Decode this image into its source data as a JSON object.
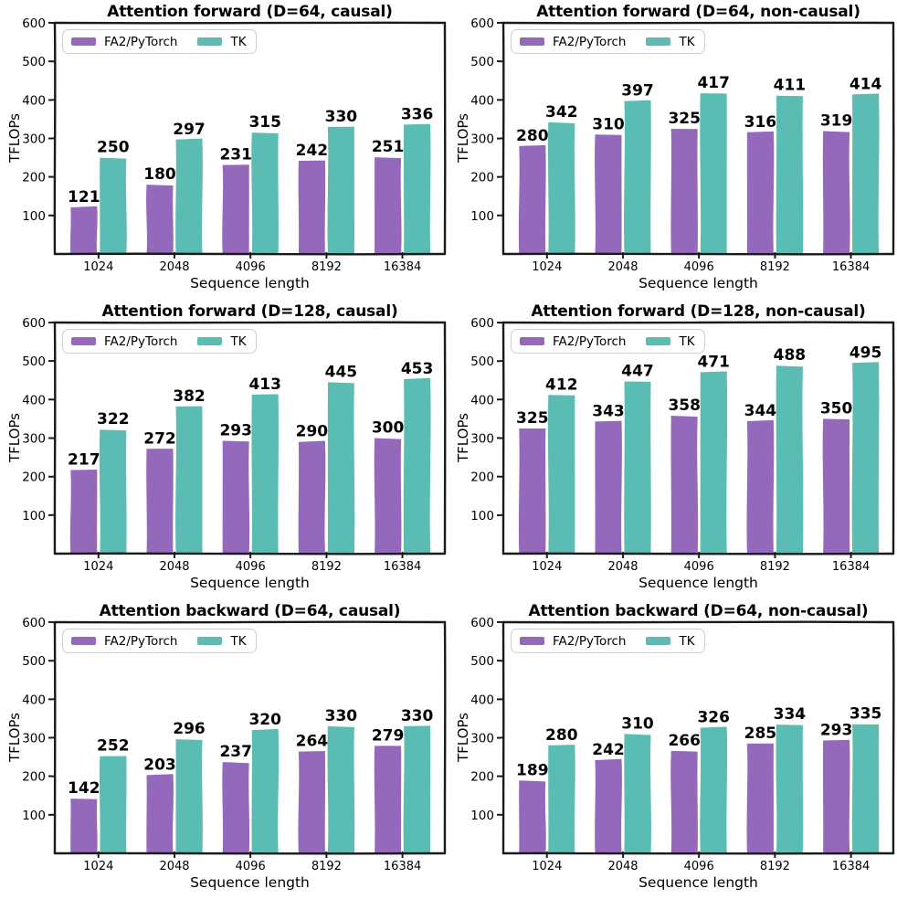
{
  "chart_data": {
    "type": "bar",
    "categories": [
      "1024",
      "2048",
      "4096",
      "8192",
      "16384"
    ],
    "xlabel": "Sequence length",
    "ylabel": "TFLOPs",
    "ylim": [
      0,
      600
    ],
    "yticks": [
      100,
      200,
      300,
      400,
      500,
      600
    ],
    "grid": false,
    "legend_position": "upper left",
    "legend": {
      "fa2": "FA2/PyTorch",
      "tk": "TK"
    },
    "colors": {
      "fa2": "#9468bb",
      "tk": "#5bbcb4",
      "axis": "#1a1a1a",
      "text": "#000000",
      "legend_border": "#cfcfcf",
      "background": "#ffffff"
    },
    "charts": [
      {
        "title": "Attention forward (D=64, causal)",
        "series": [
          {
            "name": "FA2/PyTorch",
            "values": [
              121,
              180,
              231,
              242,
              251
            ]
          },
          {
            "name": "TK",
            "values": [
              250,
              297,
              315,
              330,
              336
            ]
          }
        ]
      },
      {
        "title": "Attention forward (D=64, non-causal)",
        "series": [
          {
            "name": "FA2/PyTorch",
            "values": [
              280,
              310,
              325,
              316,
              319
            ]
          },
          {
            "name": "TK",
            "values": [
              342,
              397,
              417,
              411,
              414
            ]
          }
        ]
      },
      {
        "title": "Attention forward (D=128, causal)",
        "series": [
          {
            "name": "FA2/PyTorch",
            "values": [
              217,
              272,
              293,
              290,
              300
            ]
          },
          {
            "name": "TK",
            "values": [
              322,
              382,
              413,
              445,
              453
            ]
          }
        ]
      },
      {
        "title": "Attention forward (D=128, non-causal)",
        "series": [
          {
            "name": "FA2/PyTorch",
            "values": [
              325,
              343,
              358,
              344,
              350
            ]
          },
          {
            "name": "TK",
            "values": [
              412,
              447,
              471,
              488,
              495
            ]
          }
        ]
      },
      {
        "title": "Attention backward (D=64, causal)",
        "series": [
          {
            "name": "FA2/PyTorch",
            "values": [
              142,
              203,
              237,
              264,
              279
            ]
          },
          {
            "name": "TK",
            "values": [
              252,
              296,
              320,
              330,
              330
            ]
          }
        ]
      },
      {
        "title": "Attention backward (D=64, non-causal)",
        "series": [
          {
            "name": "FA2/PyTorch",
            "values": [
              189,
              242,
              266,
              285,
              293
            ]
          },
          {
            "name": "TK",
            "values": [
              280,
              310,
              326,
              334,
              335
            ]
          }
        ]
      }
    ]
  }
}
